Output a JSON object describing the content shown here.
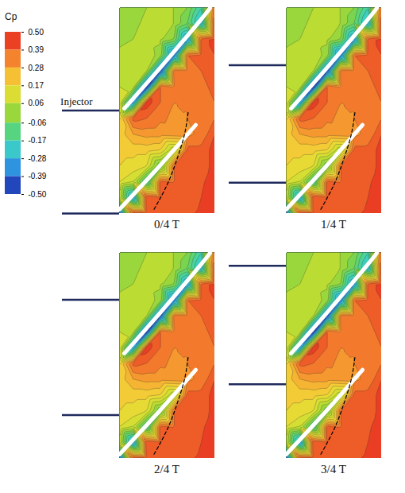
{
  "chart_data": {
    "type": "contour",
    "colorbar": {
      "label": "Cp",
      "lim": [
        -0.5,
        0.5
      ],
      "ticks": [
        {
          "value": 0.5,
          "label": "0.50"
        },
        0.39,
        0.28,
        0.17,
        0.06,
        -0.06,
        -0.17,
        -0.28,
        -0.39,
        {
          "value": -0.5,
          "label": "-0.50"
        }
      ]
    },
    "field": {
      "x": [
        0,
        0.143,
        0.286,
        0.429,
        0.571,
        0.714,
        0.857,
        1.0
      ],
      "y": [
        0,
        0.077,
        0.154,
        0.231,
        0.308,
        0.385,
        0.462,
        0.538,
        0.615,
        0.692,
        0.769,
        0.846,
        0.923,
        1.0
      ],
      "values": [
        [
          0.02,
          0.03,
          0.05,
          0.06,
          0.05,
          0.0,
          -0.15,
          0.4
        ],
        [
          0.03,
          0.04,
          0.06,
          0.07,
          0.05,
          -0.05,
          -0.25,
          0.45
        ],
        [
          0.04,
          0.05,
          0.07,
          0.06,
          0.0,
          -0.3,
          0.42,
          0.47
        ],
        [
          0.06,
          0.07,
          0.08,
          0.03,
          -0.35,
          0.4,
          0.42,
          0.45
        ],
        [
          0.08,
          0.09,
          0.05,
          -0.4,
          0.38,
          0.38,
          0.4,
          0.44
        ],
        [
          0.1,
          0.08,
          -0.45,
          0.4,
          0.36,
          0.36,
          0.38,
          0.42
        ],
        [
          0.14,
          -0.3,
          0.48,
          0.4,
          0.35,
          0.35,
          0.37,
          0.4
        ],
        [
          0.2,
          0.42,
          0.4,
          0.36,
          0.34,
          0.35,
          0.36,
          0.4
        ],
        [
          0.22,
          0.3,
          0.32,
          0.32,
          0.33,
          0.34,
          0.36,
          0.45
        ],
        [
          0.22,
          0.22,
          0.22,
          0.2,
          0.05,
          0.42,
          0.42,
          0.47
        ],
        [
          0.2,
          0.18,
          0.15,
          -0.05,
          0.4,
          0.4,
          0.42,
          0.47
        ],
        [
          0.15,
          0.1,
          -0.15,
          0.42,
          0.4,
          0.41,
          0.44,
          0.48
        ],
        [
          0.1,
          -0.3,
          0.45,
          0.42,
          0.41,
          0.42,
          0.45,
          0.48
        ],
        [
          -0.4,
          0.45,
          0.44,
          0.43,
          0.43,
          0.44,
          0.46,
          0.48
        ]
      ]
    },
    "panels": [
      {
        "title": "0/4 T",
        "injector_y": [
          0.5,
          1.0
        ],
        "annotation": "Injector"
      },
      {
        "title": "1/4 T",
        "injector_y": [
          0.28,
          0.85
        ]
      },
      {
        "title": "2/4 T",
        "injector_y": [
          0.23,
          0.79
        ]
      },
      {
        "title": "3/4 T",
        "injector_y": [
          0.065,
          0.64
        ]
      }
    ]
  }
}
